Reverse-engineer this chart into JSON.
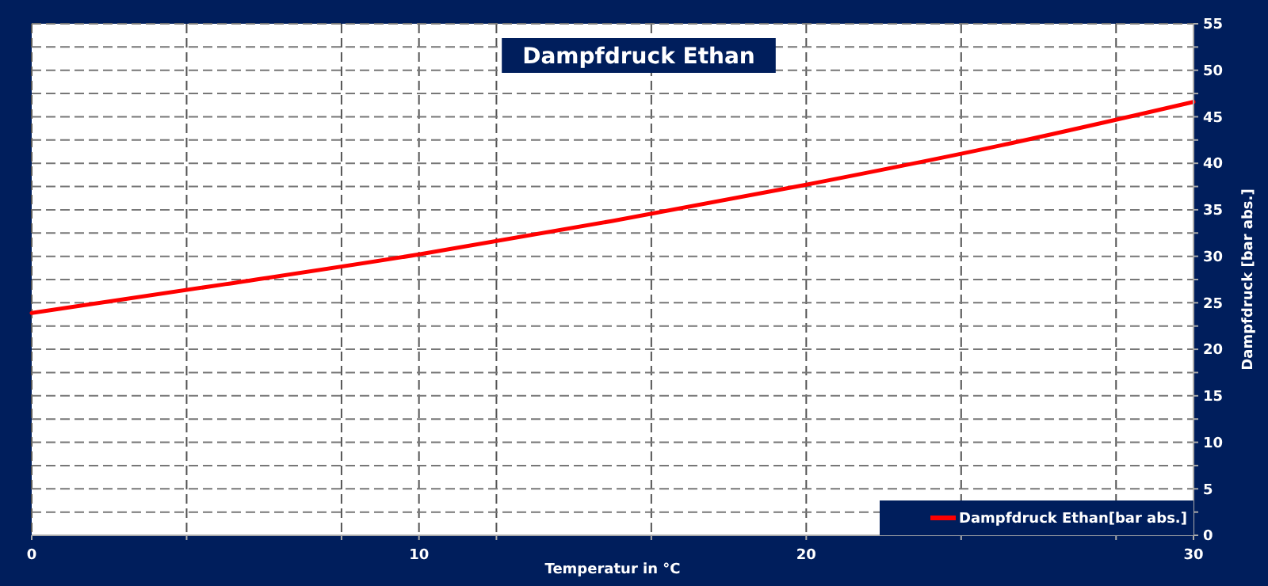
{
  "chart_data": {
    "type": "line",
    "title": "Dampfdruck Ethan",
    "xlabel": "Temperatur in °C",
    "ylabel": "Dampfdruck [bar abs.]",
    "x": [
      0,
      5,
      10,
      15,
      20,
      25,
      30
    ],
    "series": [
      {
        "name": "Dampfdruck Ethan[bar abs.]",
        "color": "#ff0000",
        "values": [
          23.9,
          27.0,
          30.2,
          33.8,
          37.7,
          41.9,
          46.6
        ]
      }
    ],
    "xlim": [
      0,
      30
    ],
    "xticks": [
      0,
      {
        "value": 4,
        "label": null
      },
      {
        "value": 8,
        "label": null
      },
      10,
      {
        "value": 12,
        "label": null
      },
      {
        "value": 16,
        "label": null
      },
      20,
      {
        "value": 24,
        "label": null
      },
      {
        "value": 28,
        "label": null
      },
      30
    ],
    "ylim": [
      0,
      55
    ],
    "yticks": [
      0,
      {
        "value": 2.5,
        "label": null
      },
      5,
      {
        "value": 7.5,
        "label": null
      },
      10,
      {
        "value": 12.5,
        "label": null
      },
      15,
      {
        "value": 17.5,
        "label": null
      },
      20,
      {
        "value": 22.5,
        "label": null
      },
      25,
      {
        "value": 27.5,
        "label": null
      },
      30,
      {
        "value": 32.5,
        "label": null
      },
      35,
      {
        "value": 37.5,
        "label": null
      },
      40,
      {
        "value": 42.5,
        "label": null
      },
      45,
      {
        "value": 47.5,
        "label": null
      },
      50,
      {
        "value": 52.5,
        "label": null
      },
      55
    ],
    "grid": true,
    "legend": "bottom right",
    "marker": "none",
    "line_style": "solid"
  }
}
